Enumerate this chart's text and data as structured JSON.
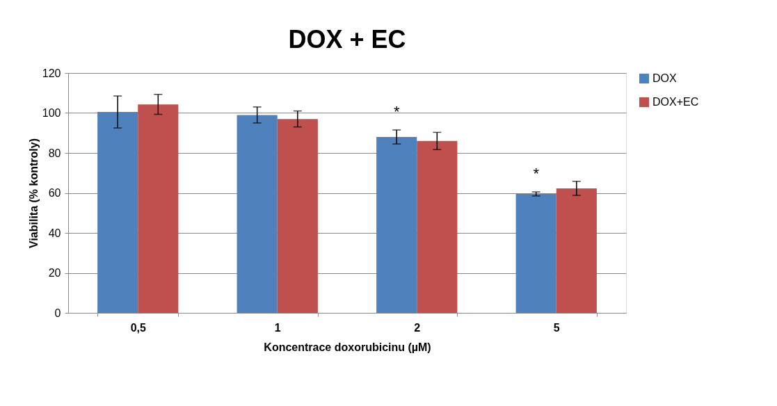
{
  "chart_data": {
    "type": "bar",
    "title": "DOX + EC",
    "xlabel": "Koncentrace doxorubicinu (µM)",
    "ylabel": "Viabilita (% kontroly)",
    "categories": [
      "0,5",
      "1",
      "2",
      "5"
    ],
    "series": [
      {
        "name": "DOX",
        "color": "#4f81bd",
        "values": [
          100.5,
          99,
          88,
          59.5
        ],
        "errors": [
          8,
          4,
          3.5,
          1
        ]
      },
      {
        "name": "DOX+EC",
        "color": "#c0504d",
        "values": [
          104.3,
          97,
          86,
          62.3
        ],
        "errors": [
          5,
          4,
          4.3,
          3.5
        ]
      }
    ],
    "ylim": [
      0,
      120
    ],
    "yticks": [
      0,
      20,
      40,
      60,
      80,
      100,
      120
    ],
    "grid": "y",
    "legend": "right",
    "annotations": [
      "*",
      "*"
    ]
  }
}
